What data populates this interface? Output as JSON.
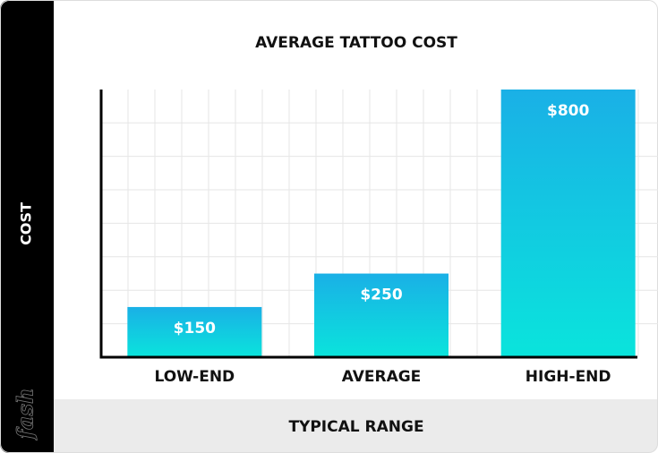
{
  "chart_data": {
    "type": "bar",
    "title": "AVERAGE TATTOO COST",
    "x_label": "TYPICAL RANGE",
    "y_label": "COST",
    "watermark": "fash",
    "categories": [
      "LOW-END",
      "AVERAGE",
      "HIGH-END"
    ],
    "values": [
      150,
      250,
      800
    ],
    "value_labels": [
      "$150",
      "$250",
      "$800"
    ],
    "gradient": [
      "#1ab0e6",
      "#0ae4dc"
    ],
    "ylim": [
      0,
      800
    ],
    "grid": true
  }
}
